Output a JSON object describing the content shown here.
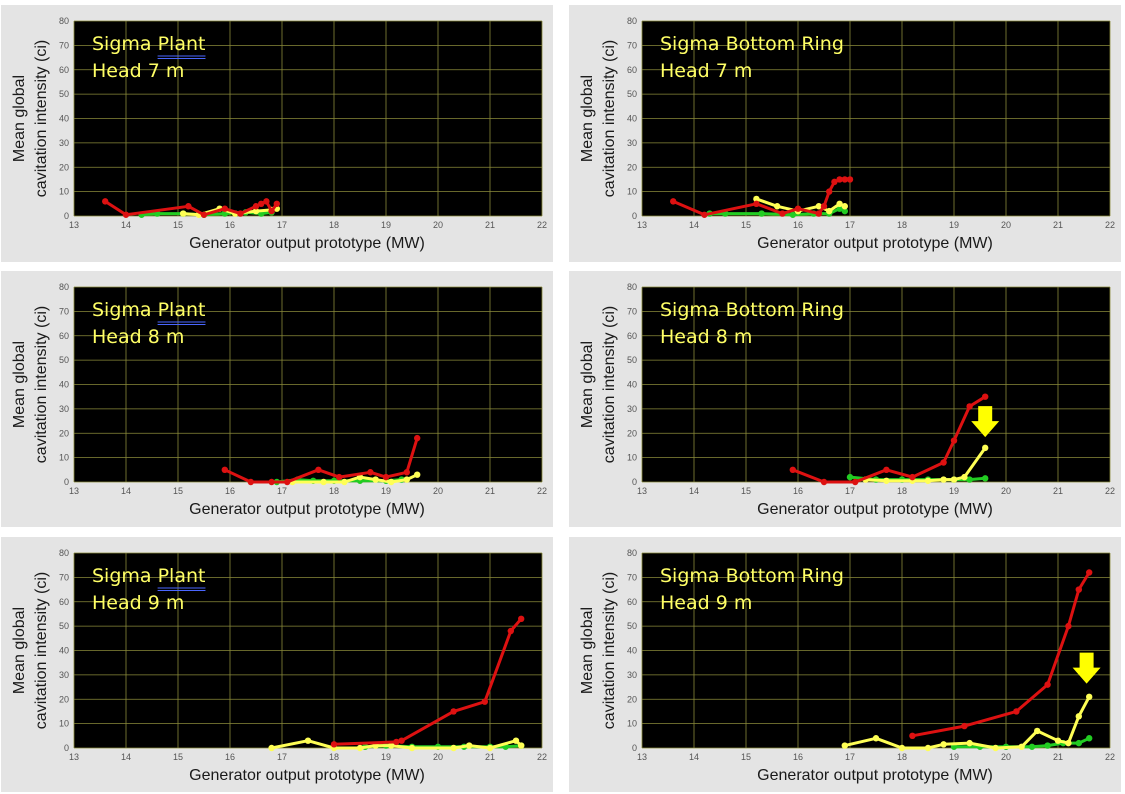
{
  "figure": {
    "colors": {
      "panel_bg": "#e4e4e4",
      "plot_bg": "#000000",
      "grid": "#8a8a3a",
      "annotation_text": "#ffff66",
      "arrow": "#ffff00"
    }
  },
  "chart_data": [
    {
      "type": "line",
      "annotation_line1_prefix": "Sigma ",
      "annotation_line1_word": "Plant",
      "annotation_line2": "Head 7 m",
      "xlabel": "Generator output prototype (MW)",
      "ylabel_line1": "Mean global",
      "ylabel_line2": "cavitation intensity (ci)",
      "xlim": [
        13,
        22
      ],
      "ylim": [
        0,
        80
      ],
      "xticks": [
        "13",
        "14",
        "15",
        "16",
        "17",
        "18",
        "19",
        "20",
        "21",
        "22"
      ],
      "yticks": [
        "0",
        "10",
        "20",
        "30",
        "40",
        "50",
        "60",
        "70",
        "80"
      ],
      "grid": true,
      "arrow": null,
      "series": [
        {
          "color": "#22cc22",
          "x": [
            14.3,
            14.6,
            15.1,
            15.5,
            15.9,
            16.3,
            16.6,
            16.8
          ],
          "y": [
            0.5,
            1,
            1,
            0.5,
            1,
            1.5,
            1,
            1.5
          ]
        },
        {
          "color": "#ffff55",
          "x": [
            15.1,
            15.4,
            15.8,
            16.1,
            16.5,
            16.8,
            16.9
          ],
          "y": [
            1,
            0.5,
            3,
            1,
            2,
            2.5,
            3
          ]
        },
        {
          "color": "#dd1111",
          "x": [
            13.6,
            14.0,
            15.2,
            15.5,
            15.9,
            16.2,
            16.5,
            16.6,
            16.7,
            16.8,
            16.9
          ],
          "y": [
            6,
            0.5,
            4,
            0.5,
            3,
            1,
            4,
            5,
            6,
            2,
            5
          ]
        }
      ]
    },
    {
      "type": "line",
      "annotation_line1_prefix": "Sigma Bottom Ring",
      "annotation_line1_word": "",
      "annotation_line2": "Head 7 m",
      "xlabel": "Generator output prototype (MW)",
      "ylabel_line1": "Mean global",
      "ylabel_line2": "cavitation intensity (ci)",
      "xlim": [
        13,
        22
      ],
      "ylim": [
        0,
        80
      ],
      "xticks": [
        "13",
        "14",
        "15",
        "16",
        "17",
        "18",
        "19",
        "20",
        "21",
        "22"
      ],
      "yticks": [
        "0",
        "10",
        "20",
        "30",
        "40",
        "50",
        "60",
        "70",
        "80"
      ],
      "grid": true,
      "arrow": null,
      "series": [
        {
          "color": "#22cc22",
          "x": [
            14.3,
            14.6,
            15.3,
            15.9,
            16.3,
            16.6,
            16.8,
            16.9
          ],
          "y": [
            1,
            1,
            1,
            0.5,
            1,
            1,
            3,
            2
          ]
        },
        {
          "color": "#ffff55",
          "x": [
            15.2,
            15.6,
            16.0,
            16.4,
            16.6,
            16.8,
            16.9
          ],
          "y": [
            7,
            4,
            2,
            4,
            2,
            5,
            4
          ]
        },
        {
          "color": "#dd1111",
          "x": [
            13.6,
            14.2,
            15.2,
            15.7,
            16.0,
            16.4,
            16.5,
            16.6,
            16.7,
            16.8,
            16.9,
            17.0
          ],
          "y": [
            6,
            0.5,
            5,
            1,
            3,
            1,
            4,
            10,
            14,
            15,
            15,
            15
          ]
        }
      ]
    },
    {
      "type": "line",
      "annotation_line1_prefix": "Sigma ",
      "annotation_line1_word": "Plant",
      "annotation_line2": "Head 8 m",
      "xlabel": "Generator output prototype (MW)",
      "ylabel_line1": "Mean global",
      "ylabel_line2": "cavitation intensity (ci)",
      "xlim": [
        13,
        22
      ],
      "ylim": [
        0,
        80
      ],
      "xticks": [
        "13",
        "14",
        "15",
        "16",
        "17",
        "18",
        "19",
        "20",
        "21",
        "22"
      ],
      "yticks": [
        "0",
        "10",
        "20",
        "30",
        "40",
        "50",
        "60",
        "70",
        "80"
      ],
      "grid": true,
      "arrow": null,
      "series": [
        {
          "color": "#22cc22",
          "x": [
            16.9,
            17.3,
            17.6,
            18.0,
            18.5,
            19.0,
            19.3
          ],
          "y": [
            0,
            1,
            0.5,
            0.5,
            0.5,
            0.5,
            1
          ]
        },
        {
          "color": "#ffff55",
          "x": [
            17.2,
            17.8,
            18.2,
            18.5,
            18.8,
            19.1,
            19.4,
            19.6
          ],
          "y": [
            0,
            0,
            0,
            2,
            1,
            0,
            1,
            3
          ]
        },
        {
          "color": "#dd1111",
          "x": [
            15.9,
            16.4,
            16.8,
            17.1,
            17.7,
            18.1,
            18.7,
            19.0,
            19.4,
            19.6
          ],
          "y": [
            5,
            0,
            0,
            0,
            5,
            2,
            4,
            2,
            4,
            18
          ]
        }
      ]
    },
    {
      "type": "line",
      "annotation_line1_prefix": "Sigma Bottom Ring",
      "annotation_line1_word": "",
      "annotation_line2": "Head 8 m",
      "xlabel": "Generator output prototype (MW)",
      "ylabel_line1": "Mean global",
      "ylabel_line2": "cavitation intensity (ci)",
      "xlim": [
        13,
        22
      ],
      "ylim": [
        0,
        80
      ],
      "xticks": [
        "13",
        "14",
        "15",
        "16",
        "17",
        "18",
        "19",
        "20",
        "21",
        "22"
      ],
      "yticks": [
        "0",
        "10",
        "20",
        "30",
        "40",
        "50",
        "60",
        "70",
        "80"
      ],
      "grid": true,
      "arrow": {
        "x": 19.6,
        "y": 25
      },
      "series": [
        {
          "color": "#22cc22",
          "x": [
            17.0,
            17.5,
            18.0,
            18.5,
            19.0,
            19.3,
            19.6
          ],
          "y": [
            2,
            1,
            1,
            1,
            1,
            1,
            1.5
          ]
        },
        {
          "color": "#ffff55",
          "x": [
            17.3,
            17.7,
            18.2,
            18.5,
            18.8,
            19.0,
            19.2,
            19.6
          ],
          "y": [
            1,
            0.5,
            0.5,
            0.5,
            1,
            1,
            2,
            14
          ]
        },
        {
          "color": "#dd1111",
          "x": [
            15.9,
            16.5,
            17.1,
            17.7,
            18.2,
            18.8,
            19.0,
            19.3,
            19.6
          ],
          "y": [
            5,
            0,
            0,
            5,
            2,
            8,
            17,
            31,
            35
          ]
        }
      ]
    },
    {
      "type": "line",
      "annotation_line1_prefix": "Sigma ",
      "annotation_line1_word": "Plant",
      "annotation_line2": "Head 9 m",
      "xlabel": "Generator output prototype (MW)",
      "ylabel_line1": "Mean global",
      "ylabel_line2": "cavitation intensity (ci)",
      "xlim": [
        13,
        22
      ],
      "ylim": [
        0,
        80
      ],
      "xticks": [
        "13",
        "14",
        "15",
        "16",
        "17",
        "18",
        "19",
        "20",
        "21",
        "22"
      ],
      "yticks": [
        "0",
        "10",
        "20",
        "30",
        "40",
        "50",
        "60",
        "70",
        "80"
      ],
      "grid": true,
      "arrow": null,
      "series": [
        {
          "color": "#22cc22",
          "x": [
            18.6,
            19.0,
            19.5,
            20.0,
            20.5,
            21.0,
            21.3,
            21.6
          ],
          "y": [
            0.5,
            1,
            0.5,
            0.5,
            0.5,
            0.5,
            0.5,
            1
          ]
        },
        {
          "color": "#ffff55",
          "x": [
            16.8,
            17.5,
            18.0,
            18.5,
            18.8,
            19.1,
            19.5,
            20.3,
            20.6,
            21.0,
            21.5,
            21.6
          ],
          "y": [
            0,
            3,
            0,
            0,
            1,
            1,
            0,
            0,
            1,
            0,
            3,
            1
          ]
        },
        {
          "color": "#dd1111",
          "x": [
            18.0,
            19.2,
            19.3,
            20.3,
            20.9,
            21.4,
            21.6
          ],
          "y": [
            1.5,
            2.5,
            3,
            15,
            19,
            48,
            53
          ]
        }
      ]
    },
    {
      "type": "line",
      "annotation_line1_prefix": "Sigma Bottom Ring",
      "annotation_line1_word": "",
      "annotation_line2": "Head 9 m",
      "xlabel": "Generator output prototype (MW)",
      "ylabel_line1": "Mean global",
      "ylabel_line2": "cavitation intensity (ci)",
      "xlim": [
        13,
        22
      ],
      "ylim": [
        0,
        80
      ],
      "xticks": [
        "13",
        "14",
        "15",
        "16",
        "17",
        "18",
        "19",
        "20",
        "21",
        "22"
      ],
      "yticks": [
        "0",
        "10",
        "20",
        "30",
        "40",
        "50",
        "60",
        "70",
        "80"
      ],
      "grid": true,
      "arrow": {
        "x": 21.55,
        "y": 33
      },
      "series": [
        {
          "color": "#22cc22",
          "x": [
            19.0,
            19.5,
            20.0,
            20.5,
            20.8,
            21.1,
            21.4,
            21.6
          ],
          "y": [
            0.5,
            0.5,
            0.5,
            0.5,
            1,
            2,
            2,
            4
          ]
        },
        {
          "color": "#ffff55",
          "x": [
            16.9,
            17.5,
            18.0,
            18.5,
            18.8,
            19.3,
            19.8,
            20.3,
            20.6,
            21.0,
            21.2,
            21.4,
            21.6
          ],
          "y": [
            1,
            4,
            0,
            0,
            1.5,
            2,
            0,
            0.5,
            7,
            3,
            2,
            13,
            21
          ]
        },
        {
          "color": "#dd1111",
          "x": [
            18.2,
            19.2,
            20.2,
            20.8,
            21.2,
            21.4,
            21.6
          ],
          "y": [
            5,
            9,
            15,
            26,
            50,
            65,
            72
          ]
        }
      ]
    }
  ]
}
